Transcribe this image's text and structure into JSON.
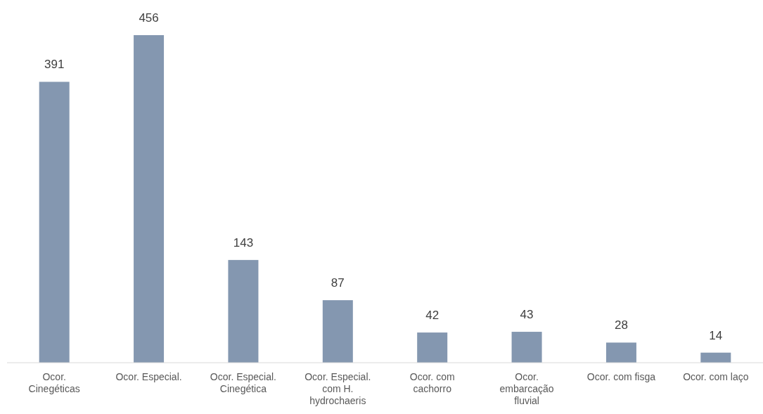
{
  "chart_data": {
    "type": "bar",
    "categories": [
      "Ocor. Cinegéticas",
      "Ocor. Especial.",
      "Ocor. Especial. Cinegética",
      "Ocor. Especial. com H. hydrochaeris",
      "Ocor. com cachorro",
      "Ocor. embarcação fluvial",
      "Ocor. com fisga",
      "Ocor. com laço"
    ],
    "values": [
      391,
      456,
      143,
      87,
      42,
      43,
      28,
      14
    ],
    "color": "#8497b0",
    "data_labels": true
  }
}
